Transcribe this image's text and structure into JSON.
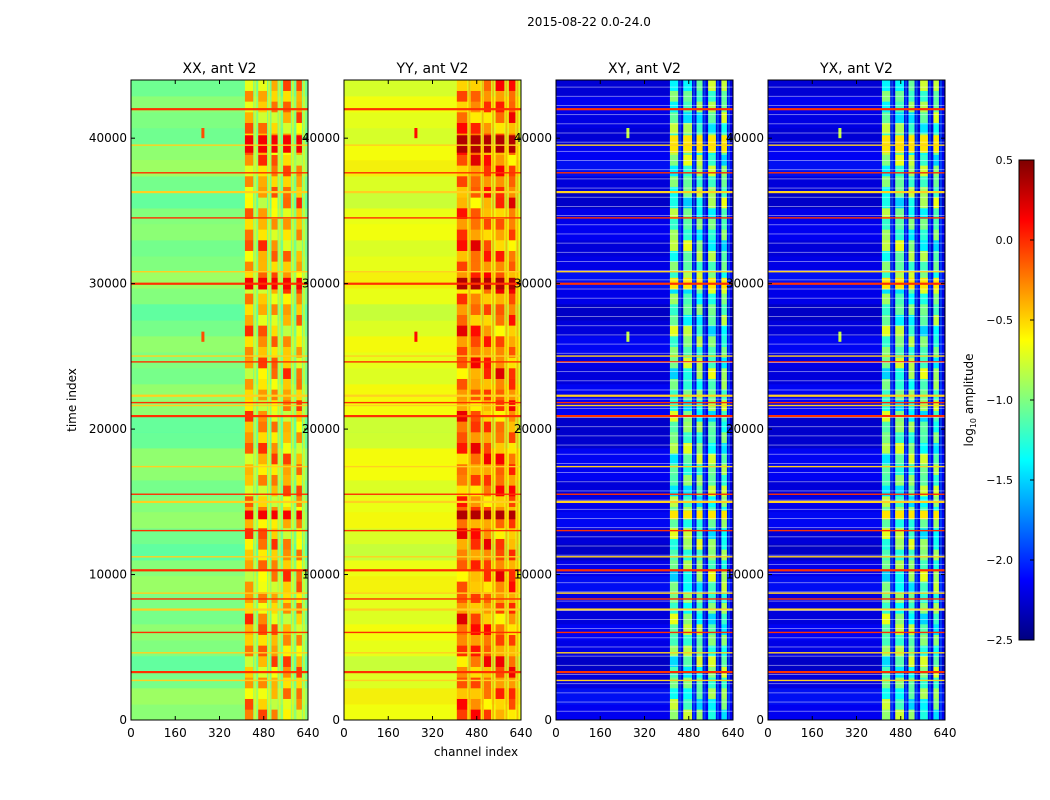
{
  "figure_title": "2015-08-22 0.0-24.0",
  "shared_xlabel": "channel index",
  "shared_ylabel": "time index",
  "colorbar": {
    "label_prefix": "log",
    "label_sub": "10",
    "label_suffix": " amplitude",
    "range": [
      -2.5,
      0.5
    ],
    "ticks": [
      0.5,
      0.0,
      -0.5,
      -1.0,
      -1.5,
      -2.0,
      -2.5
    ],
    "tick_labels": [
      "0.5",
      "0.0",
      "−0.5",
      "−1.0",
      "−1.5",
      "−2.0",
      "−2.5"
    ],
    "colormap": "jet",
    "jet_stops": [
      "#00007f",
      "#0000ff",
      "#0080ff",
      "#00ffff",
      "#80ff80",
      "#ffff00",
      "#ff8000",
      "#ff0000",
      "#7f0000"
    ]
  },
  "chart_data": [
    {
      "type": "heatmap",
      "title": "XX, ant V2",
      "xlim": [
        0,
        640
      ],
      "ylim": [
        0,
        44000
      ],
      "xticks": [
        0,
        160,
        320,
        480,
        640
      ],
      "xtick_labels": [
        "0",
        "160",
        "320",
        "480",
        "640"
      ],
      "yticks": [
        0,
        10000,
        20000,
        30000,
        40000
      ],
      "ytick_labels": [
        "0",
        "10000",
        "20000",
        "30000",
        "40000"
      ],
      "background_log10": -1.0,
      "rfi_channel_bands": [
        [
          412,
          442
        ],
        [
          460,
          492
        ],
        [
          508,
          530
        ],
        [
          550,
          578
        ],
        [
          598,
          618
        ]
      ],
      "rfi_band_log10": -0.4,
      "spot_channels": [
        260
      ],
      "flagged_rows": [
        42000,
        39500,
        37600,
        36300,
        34500,
        30800,
        30000,
        25000,
        24600,
        22300,
        21800,
        21600,
        20900,
        17400,
        15500,
        15000,
        13000,
        11200,
        10300,
        8700,
        8300,
        7600,
        6000,
        4600,
        3300,
        2700
      ]
    },
    {
      "type": "heatmap",
      "title": "YY, ant V2",
      "xlim": [
        0,
        640
      ],
      "ylim": [
        0,
        44000
      ],
      "xticks": [
        0,
        160,
        320,
        480,
        640
      ],
      "xtick_labels": [
        "0",
        "160",
        "320",
        "480",
        "640"
      ],
      "yticks": [
        0,
        10000,
        20000,
        30000,
        40000
      ],
      "ytick_labels": [
        "0",
        "10000",
        "20000",
        "30000",
        "40000"
      ],
      "background_log10": -0.7,
      "rfi_channel_bands": [
        [
          408,
          446
        ],
        [
          458,
          494
        ],
        [
          506,
          532
        ],
        [
          548,
          580
        ],
        [
          596,
          620
        ]
      ],
      "rfi_band_log10": -0.2,
      "spot_channels": [
        260
      ],
      "flagged_rows": [
        42000,
        39500,
        37600,
        36300,
        34500,
        30800,
        30000,
        25000,
        24600,
        22300,
        21800,
        21600,
        20900,
        17400,
        15500,
        15000,
        13000,
        11200,
        10300,
        8700,
        8300,
        7600,
        6000,
        4600,
        3300,
        2700
      ]
    },
    {
      "type": "heatmap",
      "title": "XY, ant V2",
      "xlim": [
        0,
        640
      ],
      "ylim": [
        0,
        44000
      ],
      "xticks": [
        0,
        160,
        320,
        480,
        640
      ],
      "xtick_labels": [
        "0",
        "160",
        "320",
        "480",
        "640"
      ],
      "yticks": [
        0,
        10000,
        20000,
        30000,
        40000
      ],
      "ytick_labels": [
        "0",
        "10000",
        "20000",
        "30000",
        "40000"
      ],
      "background_log10": -2.2,
      "rfi_channel_bands": [
        [
          412,
          442
        ],
        [
          460,
          492
        ],
        [
          508,
          530
        ],
        [
          550,
          578
        ],
        [
          598,
          618
        ]
      ],
      "rfi_band_log10": -1.1,
      "spot_channels": [
        260
      ],
      "flagged_rows": [
        42000,
        39500,
        37600,
        36300,
        34500,
        30800,
        30000,
        25000,
        24600,
        22300,
        21800,
        21600,
        20900,
        17400,
        15500,
        15000,
        13000,
        11200,
        10300,
        8700,
        8300,
        7600,
        6000,
        4600,
        3300,
        2700
      ]
    },
    {
      "type": "heatmap",
      "title": "YX, ant V2",
      "xlim": [
        0,
        640
      ],
      "ylim": [
        0,
        44000
      ],
      "xticks": [
        0,
        160,
        320,
        480,
        640
      ],
      "xtick_labels": [
        "0",
        "160",
        "320",
        "480",
        "640"
      ],
      "yticks": [
        0,
        10000,
        20000,
        30000,
        40000
      ],
      "ytick_labels": [
        "0",
        "10000",
        "20000",
        "30000",
        "40000"
      ],
      "background_log10": -2.2,
      "rfi_channel_bands": [
        [
          412,
          442
        ],
        [
          460,
          492
        ],
        [
          508,
          530
        ],
        [
          550,
          578
        ],
        [
          598,
          618
        ]
      ],
      "rfi_band_log10": -1.1,
      "spot_channels": [
        260
      ],
      "flagged_rows": [
        42000,
        39500,
        37600,
        36300,
        34500,
        30800,
        30000,
        25000,
        24600,
        22300,
        21800,
        21600,
        20900,
        17400,
        15500,
        15000,
        13000,
        11200,
        10300,
        8700,
        8300,
        7600,
        6000,
        4600,
        3300,
        2700
      ]
    }
  ]
}
